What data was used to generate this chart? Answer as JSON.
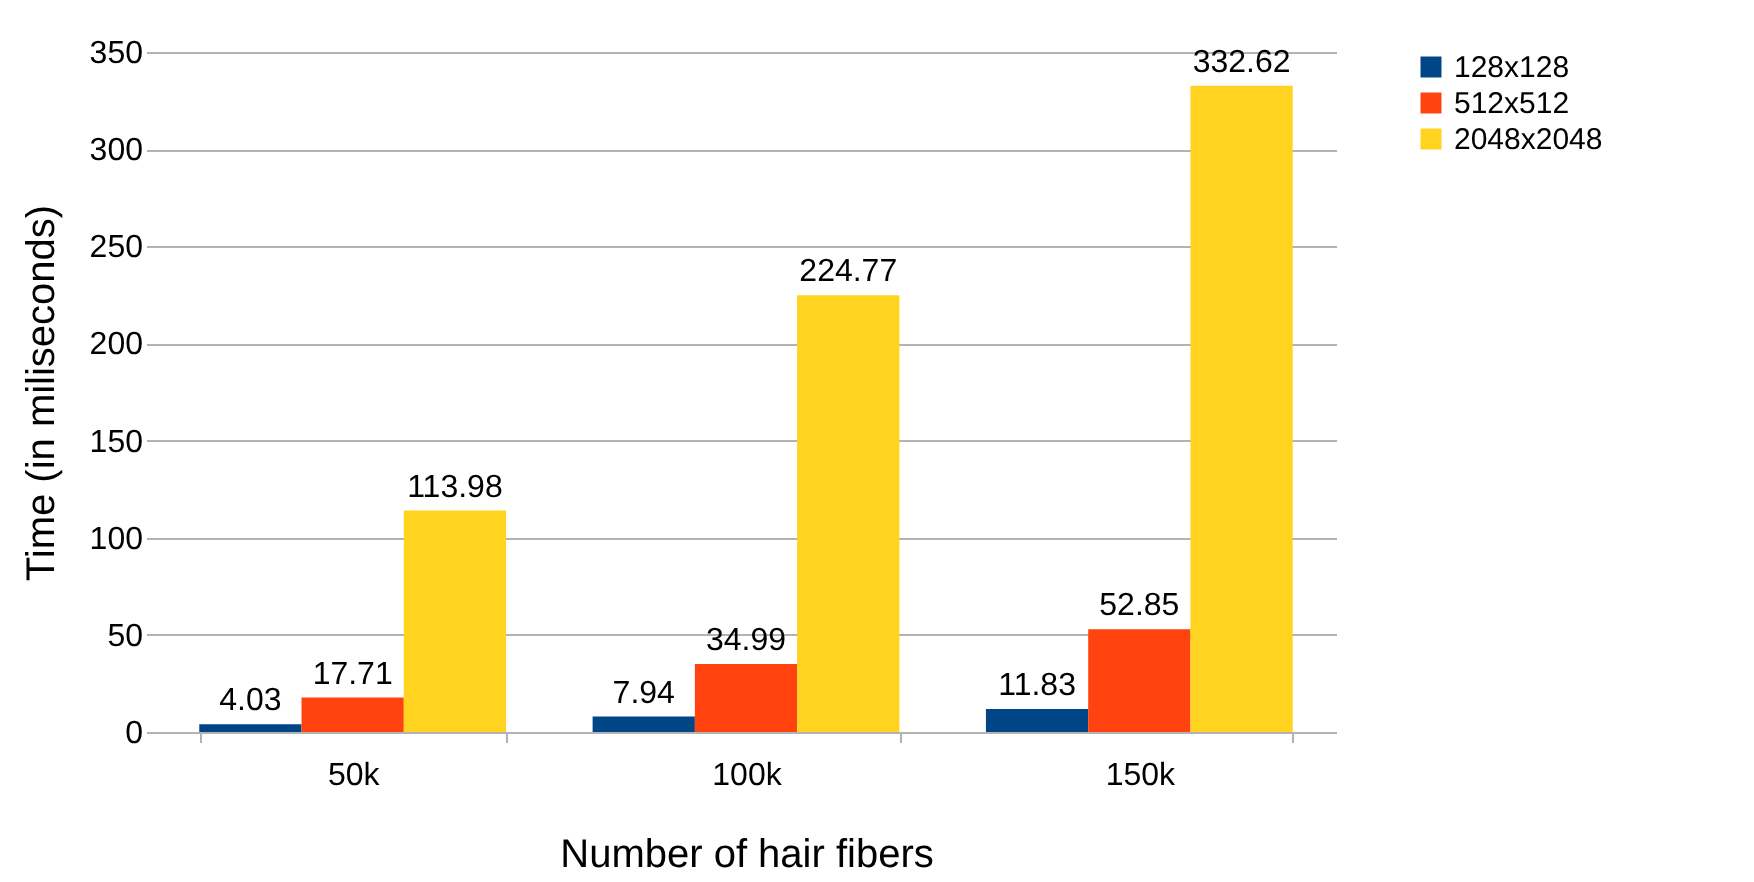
{
  "chart_data": {
    "type": "bar",
    "xlabel": "Number of hair fibers",
    "ylabel": "Time (in miliseconds)",
    "categories": [
      "50k",
      "100k",
      "150k"
    ],
    "series": [
      {
        "name": "128x128",
        "color": "#004586",
        "values": [
          4.03,
          7.94,
          11.83
        ]
      },
      {
        "name": "512x512",
        "color": "#ff420e",
        "values": [
          17.71,
          34.99,
          52.85
        ]
      },
      {
        "name": "2048x2048",
        "color": "#ffd320",
        "values": [
          113.98,
          224.77,
          332.62
        ]
      }
    ],
    "ylim": [
      0,
      350
    ],
    "yticks": [
      0,
      50,
      100,
      150,
      200,
      250,
      300,
      350
    ],
    "grid": "y",
    "legend": "right",
    "data_labels": true
  }
}
